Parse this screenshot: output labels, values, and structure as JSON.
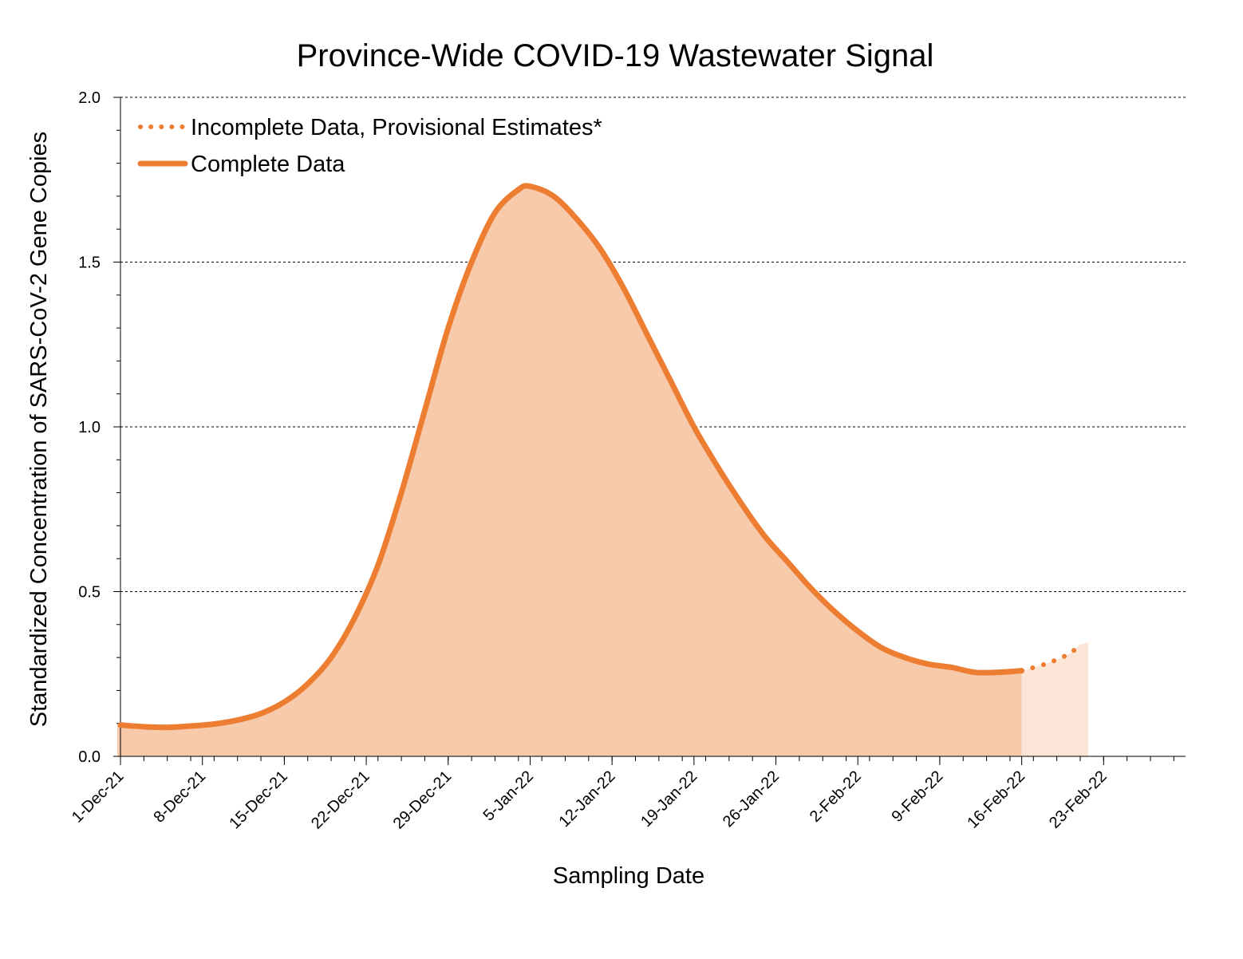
{
  "chart_data": {
    "type": "area",
    "title": "Province-Wide COVID-19 Wastewater Signal",
    "xlabel": "Sampling Date",
    "ylabel": "Standardized Concentration of SARS-CoV-2 Gene Copies",
    "ylim": [
      0,
      2.0
    ],
    "xlim": [
      "2021-12-01",
      "2022-03-02"
    ],
    "y_ticks": [
      "0.0",
      "0.5",
      "1.0",
      "1.5",
      "2.0"
    ],
    "x_ticks": [
      {
        "date": "2021-12-01",
        "label": "1-Dec-21"
      },
      {
        "date": "2021-12-08",
        "label": "8-Dec-21"
      },
      {
        "date": "2021-12-15",
        "label": "15-Dec-21"
      },
      {
        "date": "2021-12-22",
        "label": "22-Dec-21"
      },
      {
        "date": "2021-12-29",
        "label": "29-Dec-21"
      },
      {
        "date": "2022-01-05",
        "label": "5-Jan-22"
      },
      {
        "date": "2022-01-12",
        "label": "12-Jan-22"
      },
      {
        "date": "2022-01-19",
        "label": "19-Jan-22"
      },
      {
        "date": "2022-01-26",
        "label": "26-Jan-22"
      },
      {
        "date": "2022-02-02",
        "label": "2-Feb-22"
      },
      {
        "date": "2022-02-09",
        "label": "9-Feb-22"
      },
      {
        "date": "2022-02-16",
        "label": "16-Feb-22"
      },
      {
        "date": "2022-02-23",
        "label": "23-Feb-22"
      }
    ],
    "grid": "horizontal dashed",
    "legend_position": "top-left",
    "colors": {
      "line": "#ED7D31",
      "fill": "#F7CAAC",
      "fill_provisional": "#FBE5D6"
    },
    "series": [
      {
        "name": "Complete Data",
        "style": "solid",
        "points": [
          [
            "2021-12-01",
            0.095
          ],
          [
            "2021-12-03",
            0.09
          ],
          [
            "2021-12-05",
            0.088
          ],
          [
            "2021-12-07",
            0.092
          ],
          [
            "2021-12-09",
            0.098
          ],
          [
            "2021-12-11",
            0.11
          ],
          [
            "2021-12-13",
            0.13
          ],
          [
            "2021-12-15",
            0.165
          ],
          [
            "2021-12-17",
            0.22
          ],
          [
            "2021-12-19",
            0.3
          ],
          [
            "2021-12-21",
            0.42
          ],
          [
            "2021-12-23",
            0.58
          ],
          [
            "2021-12-25",
            0.8
          ],
          [
            "2021-12-27",
            1.05
          ],
          [
            "2021-12-29",
            1.3
          ],
          [
            "2021-12-31",
            1.5
          ],
          [
            "2022-01-02",
            1.65
          ],
          [
            "2022-01-04",
            1.72
          ],
          [
            "2022-01-05",
            1.73
          ],
          [
            "2022-01-07",
            1.7
          ],
          [
            "2022-01-09",
            1.63
          ],
          [
            "2022-01-11",
            1.54
          ],
          [
            "2022-01-13",
            1.42
          ],
          [
            "2022-01-15",
            1.28
          ],
          [
            "2022-01-17",
            1.14
          ],
          [
            "2022-01-19",
            1.0
          ],
          [
            "2022-01-21",
            0.88
          ],
          [
            "2022-01-23",
            0.77
          ],
          [
            "2022-01-25",
            0.67
          ],
          [
            "2022-01-27",
            0.59
          ],
          [
            "2022-01-29",
            0.51
          ],
          [
            "2022-01-31",
            0.44
          ],
          [
            "2022-02-02",
            0.38
          ],
          [
            "2022-02-04",
            0.33
          ],
          [
            "2022-02-06",
            0.3
          ],
          [
            "2022-02-08",
            0.28
          ],
          [
            "2022-02-10",
            0.27
          ],
          [
            "2022-02-12",
            0.255
          ],
          [
            "2022-02-14",
            0.255
          ],
          [
            "2022-02-16",
            0.26
          ]
        ]
      },
      {
        "name": "Incomplete Data, Provisional Estimates*",
        "style": "dotted",
        "points": [
          [
            "2022-02-16",
            0.26
          ],
          [
            "2022-02-18",
            0.28
          ],
          [
            "2022-02-20",
            0.31
          ],
          [
            "2022-02-21",
            0.34
          ]
        ]
      }
    ]
  }
}
